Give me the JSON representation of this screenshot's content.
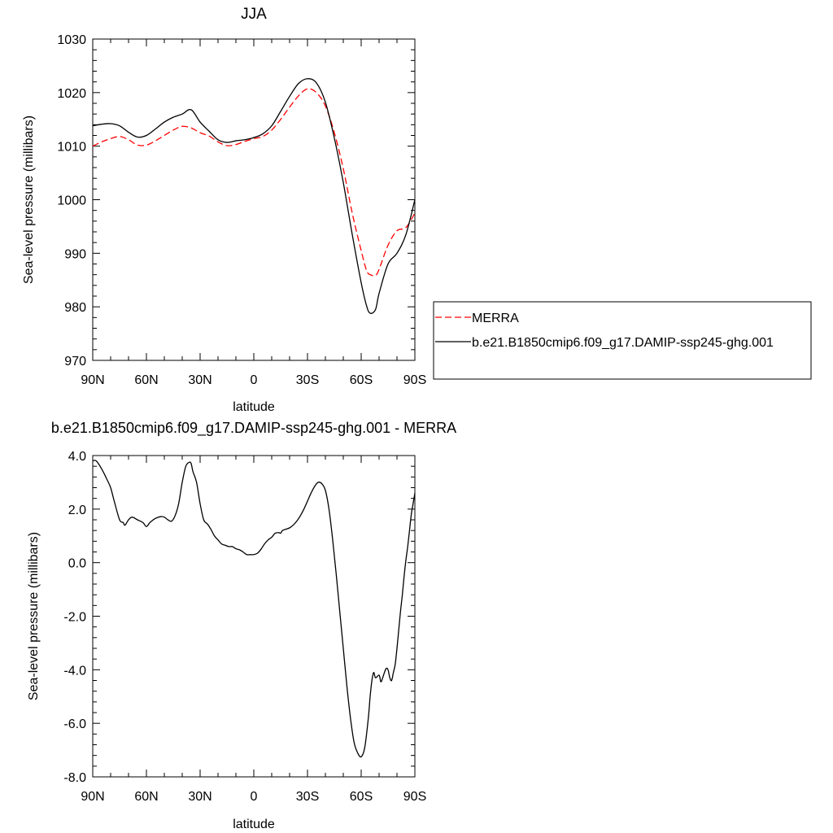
{
  "chart_data": [
    {
      "type": "line",
      "title": "JJA",
      "xlabel": "latitude",
      "ylabel": "Sea-level pressure (millibars)",
      "xlim": [
        90,
        -90
      ],
      "ylim": [
        970,
        1030
      ],
      "x_ticks": [
        90,
        60,
        30,
        0,
        -30,
        -60,
        -90
      ],
      "x_tick_labels": [
        "90N",
        "60N",
        "30N",
        "0",
        "30S",
        "60S",
        "90S"
      ],
      "y_ticks": [
        970,
        980,
        990,
        1000,
        1010,
        1020,
        1030
      ],
      "y_tick_labels": [
        "970",
        "980",
        "990",
        "1000",
        "1010",
        "1020",
        "1030"
      ],
      "legend_position": "right",
      "series": [
        {
          "name": "MERRA",
          "color": "#ff0000",
          "dash": "dashed",
          "x": [
            90,
            85,
            80,
            75,
            70,
            65,
            60,
            55,
            50,
            45,
            40,
            35,
            30,
            25,
            20,
            15,
            10,
            5,
            0,
            -5,
            -10,
            -15,
            -20,
            -25,
            -30,
            -35,
            -40,
            -45,
            -50,
            -55,
            -60,
            -63,
            -65,
            -68,
            -70,
            -75,
            -80,
            -85,
            -90
          ],
          "y": [
            1010,
            1010.8,
            1011.4,
            1011.8,
            1011.2,
            1010.2,
            1010.2,
            1011,
            1012,
            1013,
            1013.7,
            1013.4,
            1012.5,
            1011.9,
            1010.8,
            1010.1,
            1010.3,
            1010.9,
            1011.4,
            1011.8,
            1013,
            1015,
            1017.3,
            1019.4,
            1020.7,
            1020,
            1017.5,
            1012.5,
            1005.8,
            997.5,
            990.5,
            986.8,
            986,
            985.9,
            987,
            991.5,
            994.2,
            994.8,
            997.5
          ]
        },
        {
          "name": "b.e21.B1850cmip6.f09_g17.DAMIP-ssp245-ghg.001",
          "color": "#000000",
          "dash": "solid",
          "x": [
            90,
            85,
            80,
            75,
            70,
            65,
            60,
            55,
            50,
            45,
            40,
            35,
            30,
            25,
            20,
            15,
            10,
            5,
            0,
            -5,
            -10,
            -15,
            -20,
            -25,
            -30,
            -35,
            -40,
            -45,
            -50,
            -55,
            -60,
            -63,
            -65,
            -68,
            -70,
            -75,
            -80,
            -85,
            -90
          ],
          "y": [
            1013.8,
            1014.1,
            1014.2,
            1013.8,
            1012.6,
            1011.7,
            1012,
            1013.2,
            1014.5,
            1015.4,
            1016,
            1016.8,
            1014.5,
            1012.8,
            1011.2,
            1010.7,
            1011,
            1011.2,
            1011.6,
            1012.3,
            1013.8,
            1016.5,
            1019.3,
            1021.7,
            1022.6,
            1021.8,
            1018.2,
            1011.5,
            1003.2,
            993.5,
            984.5,
            980.2,
            978.8,
            979.5,
            982.5,
            988,
            990,
            993.5,
            1000
          ]
        }
      ]
    },
    {
      "type": "line",
      "title": "b.e21.B1850cmip6.f09_g17.DAMIP-ssp245-ghg.001 - MERRA",
      "xlabel": "latitude",
      "ylabel": "Sea-level pressure (millibars)",
      "xlim": [
        90,
        -90
      ],
      "ylim": [
        -8,
        4
      ],
      "x_ticks": [
        90,
        60,
        30,
        0,
        -30,
        -60,
        -90
      ],
      "x_tick_labels": [
        "90N",
        "60N",
        "30N",
        "0",
        "30S",
        "60S",
        "90S"
      ],
      "y_ticks": [
        -8,
        -6,
        -4,
        -2,
        0,
        2,
        4
      ],
      "y_tick_labels": [
        "-8.0",
        "-6.0",
        "-4.0",
        "-2.0",
        "0.0",
        "2.0",
        "4.0"
      ],
      "series": [
        {
          "color": "#000000",
          "dash": "solid",
          "x": [
            90,
            88,
            85,
            82,
            80,
            78,
            75,
            73,
            72,
            70,
            68,
            65,
            62,
            60,
            58,
            55,
            52,
            50,
            48,
            46,
            44,
            42,
            40,
            38,
            36,
            35,
            34,
            32,
            30,
            28,
            26,
            24,
            22,
            20,
            18,
            16,
            14,
            12,
            10,
            8,
            6,
            4,
            2,
            0,
            -2,
            -4,
            -6,
            -8,
            -10,
            -12,
            -14,
            -15,
            -16,
            -18,
            -20,
            -22,
            -24,
            -26,
            -28,
            -30,
            -32,
            -34,
            -36,
            -38,
            -40,
            -42,
            -44,
            -46,
            -48,
            -50,
            -52,
            -54,
            -56,
            -58,
            -60,
            -62,
            -64,
            -65,
            -66,
            -67,
            -68,
            -70,
            -71,
            -72,
            -73,
            -74,
            -75,
            -76,
            -77,
            -78,
            -79,
            -80,
            -81,
            -82,
            -83,
            -84,
            -85,
            -86,
            -87,
            -88,
            -89,
            -90
          ],
          "y": [
            3.8,
            3.8,
            3.5,
            3.1,
            2.8,
            2.3,
            1.6,
            1.5,
            1.4,
            1.6,
            1.7,
            1.6,
            1.5,
            1.35,
            1.5,
            1.65,
            1.72,
            1.7,
            1.6,
            1.55,
            1.75,
            2.2,
            3.0,
            3.6,
            3.75,
            3.7,
            3.4,
            3.0,
            2.2,
            1.6,
            1.45,
            1.25,
            1.0,
            0.85,
            0.7,
            0.65,
            0.6,
            0.6,
            0.52,
            0.48,
            0.4,
            0.3,
            0.3,
            0.3,
            0.35,
            0.5,
            0.7,
            0.85,
            0.95,
            1.1,
            1.12,
            1.1,
            1.2,
            1.25,
            1.3,
            1.4,
            1.55,
            1.75,
            2.0,
            2.3,
            2.6,
            2.85,
            3.0,
            2.95,
            2.7,
            2.0,
            0.9,
            -0.4,
            -1.8,
            -3.2,
            -4.6,
            -5.8,
            -6.7,
            -7.1,
            -7.25,
            -6.9,
            -5.8,
            -5.0,
            -4.4,
            -4.1,
            -4.3,
            -4.2,
            -4.45,
            -4.3,
            -4.1,
            -3.95,
            -4.0,
            -4.3,
            -4.4,
            -4.1,
            -3.8,
            -3.2,
            -2.5,
            -1.8,
            -1.2,
            -0.5,
            0.1,
            0.6,
            1.2,
            1.8,
            2.2,
            2.6
          ]
        }
      ]
    }
  ],
  "legend": {
    "entries": [
      {
        "label": "MERRA",
        "color": "#ff0000",
        "dash": "dashed"
      },
      {
        "label": "b.e21.B1850cmip6.f09_g17.DAMIP-ssp245-ghg.001",
        "color": "#000000",
        "dash": "solid"
      }
    ]
  }
}
